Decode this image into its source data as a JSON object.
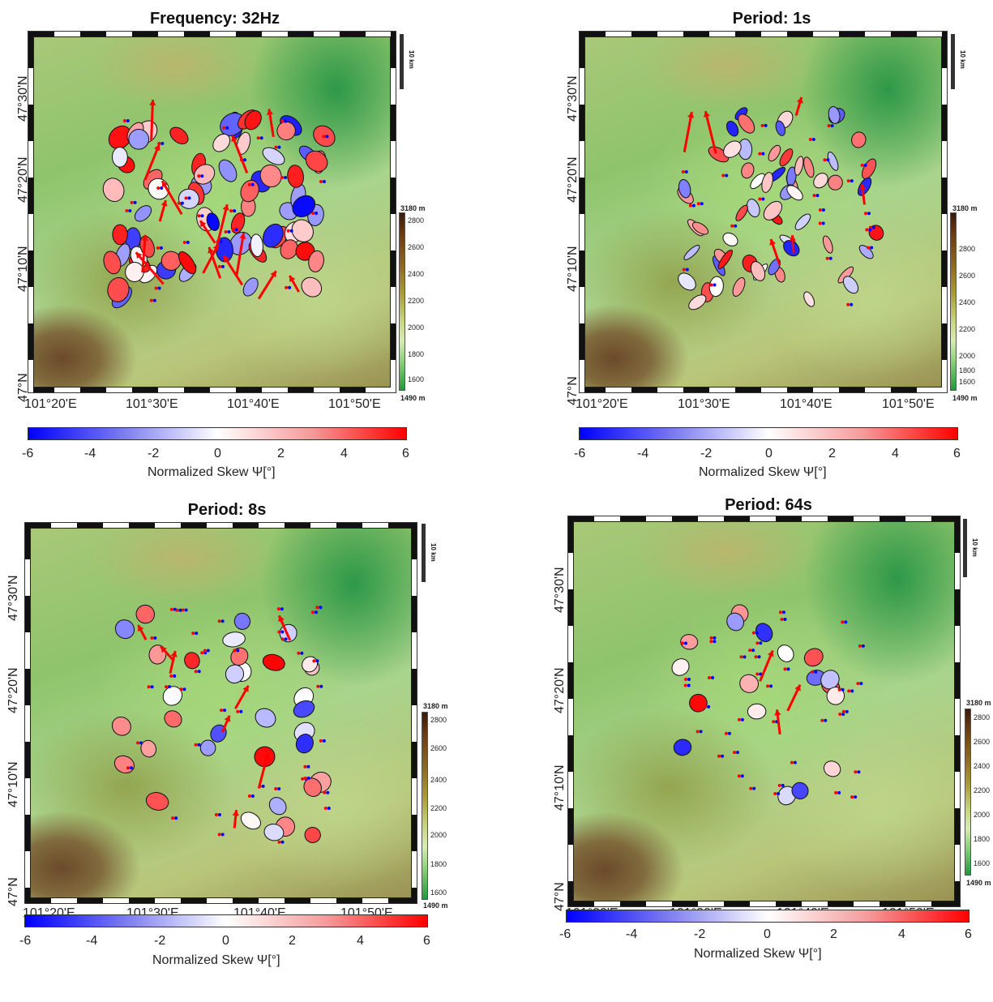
{
  "panels": [
    {
      "title": "Frequency: 32Hz"
    },
    {
      "title": "Period: 1s"
    },
    {
      "title": "Period: 8s"
    },
    {
      "title": "Period: 64s"
    }
  ],
  "axes": {
    "lat_labels": [
      "47°30'N",
      "47°20'N",
      "47°10'N",
      "47°N"
    ],
    "lon_labels": [
      "101°20'E",
      "101°30'E",
      "101°40'E",
      "101°50'E"
    ]
  },
  "scale_bar": {
    "label": "10 km"
  },
  "elevation_colorbar": {
    "max_label": "3180 m",
    "min_label": "1490 m",
    "ticks": [
      "2800",
      "2600",
      "2400",
      "2200",
      "2000",
      "1800",
      "1600"
    ]
  },
  "skew_colorbar": {
    "label": "Normalized Skew Ψ[°]",
    "ticks": [
      "-6",
      "-4",
      "-2",
      "0",
      "2",
      "4",
      "6"
    ],
    "colors": {
      "min": "#0000ff",
      "mid": "#ffffff",
      "max": "#ff0000"
    }
  },
  "glyphs": {
    "ellipse_outline": "#111111",
    "induction_arrow_color": "#ff0000",
    "station_dot_colors": [
      "#ff0000",
      "#0000ff"
    ]
  }
}
